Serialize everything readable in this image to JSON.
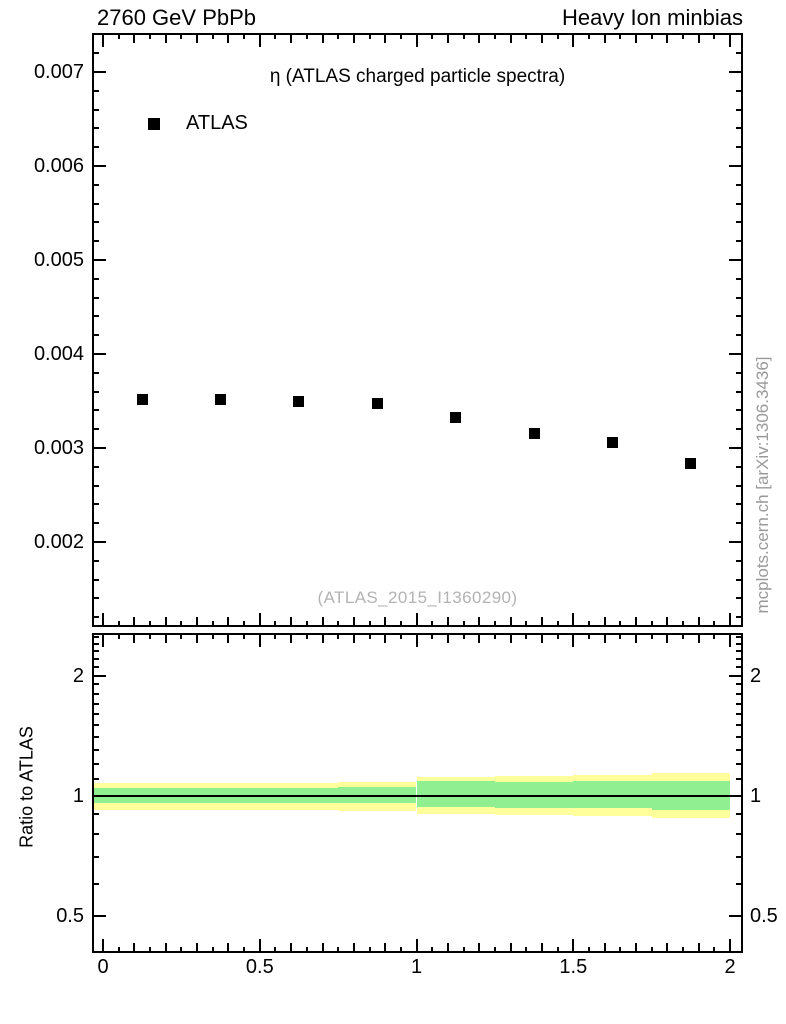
{
  "header": {
    "left": "2760 GeV PbPb",
    "right": "Heavy Ion minbias"
  },
  "side_note": "mcplots.cern.ch [arXiv:1306.3436]",
  "chart_data": {
    "type": "scatter",
    "title": "η (ATLAS charged particle spectra)",
    "analysis_watermark": "(ATLAS_2015_I1360290)",
    "legend": [
      {
        "label": "ATLAS",
        "marker": "black-filled-square"
      }
    ],
    "x_axis": {
      "label": "",
      "range": [
        -0.035,
        2.043
      ],
      "ticks": [
        0,
        0.5,
        1,
        1.5,
        2
      ],
      "tick_labels": [
        "0",
        "0.5",
        "1",
        "1.5",
        "2"
      ],
      "minor_step": 0.05
    },
    "main_panel": {
      "y_axis": {
        "range": [
          0.0011,
          0.00742
        ],
        "ticks": [
          0.002,
          0.003,
          0.004,
          0.005,
          0.006,
          0.007
        ],
        "tick_labels": [
          "0.002",
          "0.003",
          "0.004",
          "0.005",
          "0.006",
          "0.007"
        ],
        "minor_step": 0.0002
      },
      "series": [
        {
          "name": "ATLAS",
          "marker": "filled-square",
          "color": "#000000",
          "x": [
            0.125,
            0.375,
            0.625,
            0.875,
            1.125,
            1.375,
            1.625,
            1.875
          ],
          "y": [
            0.00352,
            0.00352,
            0.00349,
            0.00347,
            0.00333,
            0.00315,
            0.00306,
            0.00284
          ]
        }
      ]
    },
    "ratio_panel": {
      "ylabel": "Ratio to ATLAS",
      "scale": "log",
      "reference_line": 1,
      "y_axis": {
        "range": [
          0.403,
          2.565
        ],
        "ticks": [
          0.5,
          1,
          2
        ],
        "tick_labels": [
          "0.5",
          "1",
          "2"
        ],
        "minor_ticks": [
          0.6,
          0.7,
          0.8,
          0.9,
          1.1,
          1.2,
          1.3,
          1.4,
          1.5,
          1.6,
          1.7,
          1.8,
          1.9,
          2.1,
          2.2,
          2.3,
          2.4,
          2.5
        ]
      },
      "bands": {
        "bin_edges": [
          0,
          0.25,
          0.5,
          0.75,
          1.0,
          1.25,
          1.5,
          1.75,
          2.0
        ],
        "outer": {
          "color": "#ffff9c",
          "lo": [
            0.92,
            0.92,
            0.918,
            0.915,
            0.899,
            0.895,
            0.89,
            0.878
          ],
          "hi": [
            1.075,
            1.075,
            1.078,
            1.08,
            1.113,
            1.119,
            1.128,
            1.14
          ]
        },
        "inner": {
          "color": "#90ef90",
          "lo": [
            0.958,
            0.958,
            0.956,
            0.955,
            0.936,
            0.933,
            0.928,
            0.92
          ],
          "hi": [
            1.044,
            1.044,
            1.046,
            1.048,
            1.087,
            1.082,
            1.085,
            1.09
          ]
        }
      }
    },
    "colors": {
      "marker": "#000000",
      "frame": "#000000",
      "band_outer": "#ffff9c",
      "band_inner": "#90ef90",
      "analysis_watermark": "#b3b3b3",
      "side_note": "#999999"
    }
  }
}
